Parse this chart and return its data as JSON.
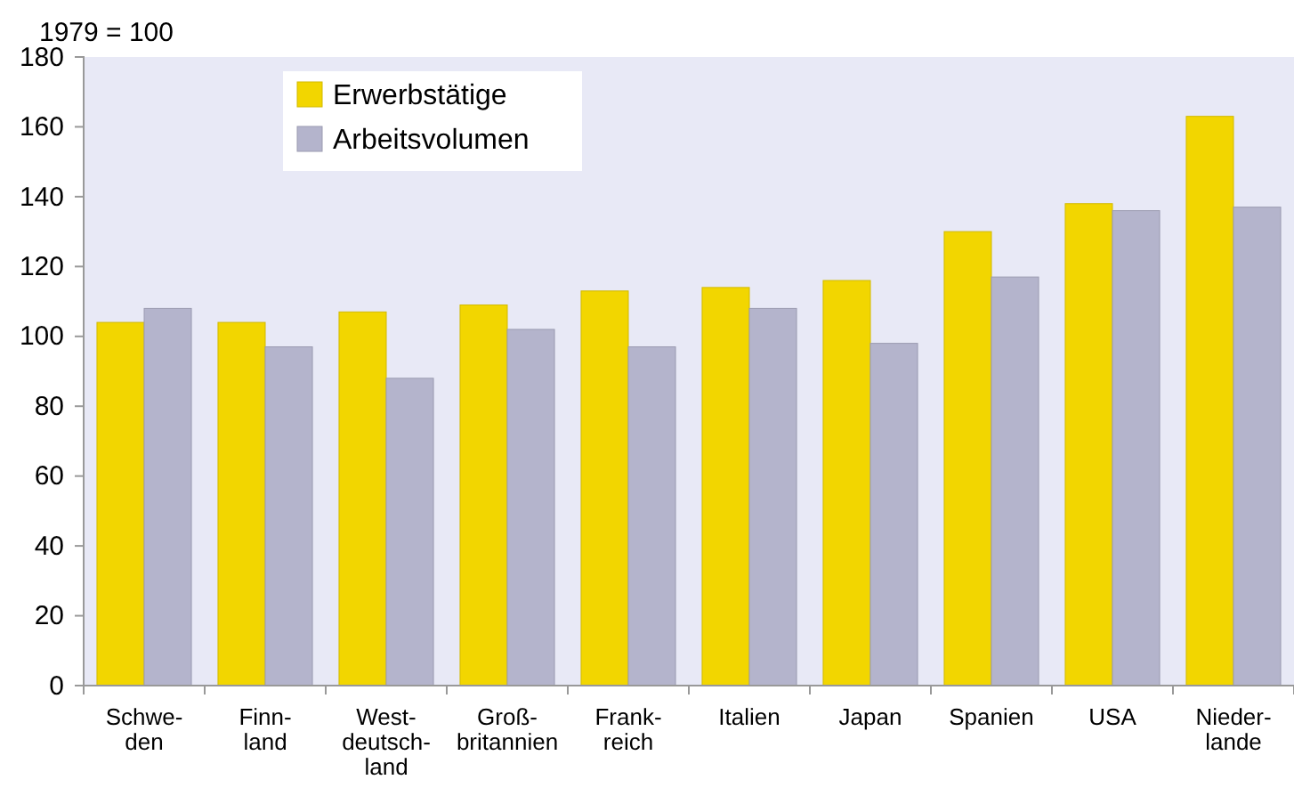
{
  "chart_data": {
    "type": "bar",
    "ylabel": "1979 = 100",
    "categories": [
      "Schwe-\nden",
      "Finn-\nland",
      "West-\ndeutsch-\nland",
      "Groß-\nbritannien",
      "Frank-\nreich",
      "Italien",
      "Japan",
      "Spanien",
      "USA",
      "Nieder-\nlande"
    ],
    "series": [
      {
        "name": "Erwerbstätige",
        "color": "#f2d600",
        "values": [
          104,
          104,
          107,
          109,
          113,
          114,
          116,
          130,
          138,
          163
        ]
      },
      {
        "name": "Arbeitsvolumen",
        "color": "#b4b4cc",
        "values": [
          108,
          97,
          88,
          102,
          97,
          108,
          98,
          117,
          136,
          137
        ]
      }
    ],
    "ylim": [
      0,
      180
    ],
    "yticks": [
      0,
      20,
      40,
      60,
      80,
      100,
      120,
      140,
      160,
      180
    ],
    "grid": false,
    "legend": "top left"
  }
}
